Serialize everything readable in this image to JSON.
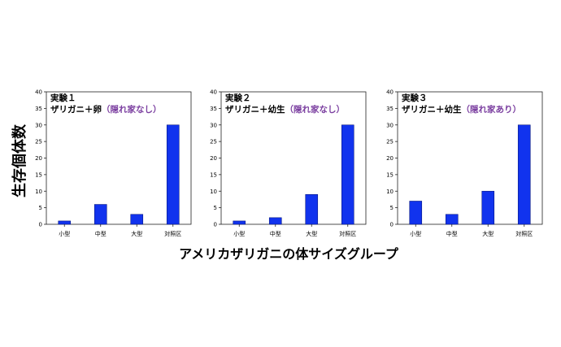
{
  "figure": {
    "ylabel": "生存個体数",
    "xlabel": "アメリカザリガニの体サイズグループ"
  },
  "colors": {
    "bar": "#1133ee",
    "condition_text": "#7b3fa0"
  },
  "chart_data": [
    {
      "type": "bar",
      "title": "実験１",
      "subtitle": "ザリガニ＋卵",
      "condition": "（隠れ家なし）",
      "categories": [
        "小型",
        "中型",
        "大型",
        "対照区"
      ],
      "values": [
        1,
        6,
        3,
        30
      ],
      "ylim": [
        0,
        40
      ],
      "yticks": [
        0,
        5,
        10,
        15,
        20,
        25,
        30,
        35,
        40
      ],
      "grid": false
    },
    {
      "type": "bar",
      "title": "実験２",
      "subtitle": "ザリガニ＋幼生",
      "condition": "（隠れ家なし）",
      "categories": [
        "小型",
        "中型",
        "大型",
        "対照区"
      ],
      "values": [
        1,
        2,
        9,
        30
      ],
      "ylim": [
        0,
        40
      ],
      "yticks": [
        0,
        5,
        10,
        15,
        20,
        25,
        30,
        35,
        40
      ],
      "grid": false
    },
    {
      "type": "bar",
      "title": "実験３",
      "subtitle": "ザリガニ＋幼生",
      "condition": "（隠れ家あり）",
      "categories": [
        "小型",
        "中型",
        "大型",
        "対照区"
      ],
      "values": [
        7,
        3,
        10,
        30
      ],
      "ylim": [
        0,
        40
      ],
      "yticks": [
        0,
        5,
        10,
        15,
        20,
        25,
        30,
        35,
        40
      ],
      "grid": false
    }
  ]
}
